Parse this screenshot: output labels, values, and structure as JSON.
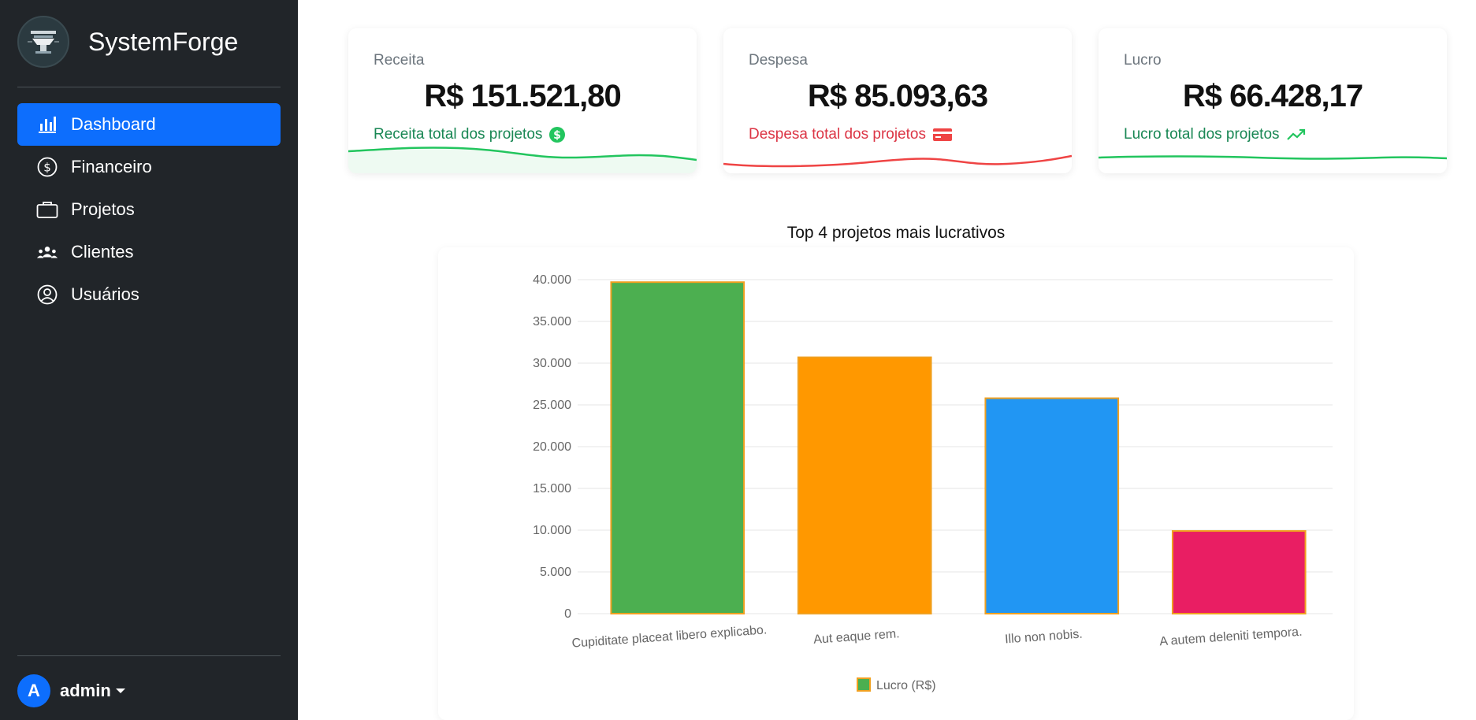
{
  "sidebar": {
    "brand": "SystemForge",
    "items": [
      {
        "label": "Dashboard",
        "icon": "bar-chart-icon",
        "active": true
      },
      {
        "label": "Financeiro",
        "icon": "dollar-circle-icon",
        "active": false
      },
      {
        "label": "Projetos",
        "icon": "briefcase-icon",
        "active": false
      },
      {
        "label": "Clientes",
        "icon": "people-icon",
        "active": false
      },
      {
        "label": "Usuários",
        "icon": "person-circle-icon",
        "active": false
      }
    ],
    "user": {
      "initial": "A",
      "name": "admin"
    }
  },
  "cards": [
    {
      "label": "Receita",
      "value": "R$ 151.521,80",
      "subtitle": "Receita total dos projetos",
      "color": "#198754",
      "line_color": "#22c55e",
      "icon": "dollar-badge-icon"
    },
    {
      "label": "Despesa",
      "value": "R$ 85.093,63",
      "subtitle": "Despesa total dos projetos",
      "color": "#dc3545",
      "line_color": "#ef4444",
      "icon": "credit-card-icon"
    },
    {
      "label": "Lucro",
      "value": "R$ 66.428,17",
      "subtitle": "Lucro total dos projetos",
      "color": "#198754",
      "line_color": "#22c55e",
      "icon": "trend-up-icon"
    }
  ],
  "chart_data": {
    "type": "bar",
    "title": "Top 4 projetos mais lucrativos",
    "categories": [
      "Cupiditate placeat libero explicabo.",
      "Aut eaque rem.",
      "Illo non nobis.",
      "A autem deleniti tempora."
    ],
    "series": [
      {
        "name": "Lucro (R$)",
        "values": [
          39700,
          30700,
          25800,
          9900
        ],
        "colors": [
          "#4caf50",
          "#ff9800",
          "#2196f3",
          "#e91e63"
        ],
        "border_color": "#f0a020"
      }
    ],
    "ylim": [
      0,
      40000
    ],
    "yticks": [
      "0",
      "5.000",
      "10.000",
      "15.000",
      "20.000",
      "25.000",
      "30.000",
      "35.000",
      "40.000"
    ],
    "grid": true,
    "legend": "bottom"
  }
}
